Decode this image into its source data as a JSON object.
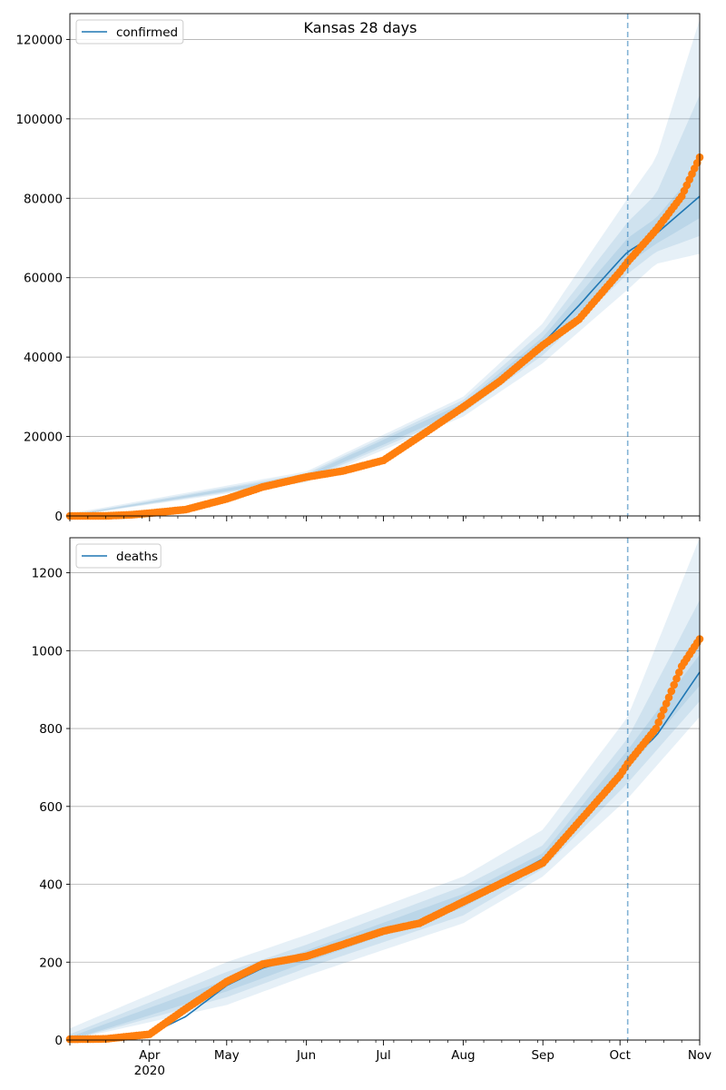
{
  "figure": {
    "title": "Kansas 28 days"
  },
  "colors": {
    "model": "#1f77b4",
    "observed": "#ff7f0e",
    "band": "#1f77b4",
    "grid": "#b0b0b0",
    "forecast_line": "#1f77b4"
  },
  "chart_data": [
    {
      "type": "line",
      "title": "Kansas 28 days",
      "xlabel": "",
      "ylabel": "",
      "x_range": [
        "2020-03-01",
        "2020-11-01"
      ],
      "ylim": [
        0,
        126500
      ],
      "yticks": [
        0,
        20000,
        40000,
        60000,
        80000,
        100000,
        120000
      ],
      "ytick_labels": [
        "0",
        "20000",
        "40000",
        "60000",
        "80000",
        "100000",
        "120000"
      ],
      "grid": "horizontal",
      "legend": {
        "position": "top-left",
        "entries": [
          "confirmed"
        ]
      },
      "forecast_start": "2020-10-04",
      "series": [
        {
          "name": "confirmed",
          "kind": "model_median",
          "points": [
            [
              "2020-03-01",
              0
            ],
            [
              "2020-03-15",
              200
            ],
            [
              "2020-04-01",
              700
            ],
            [
              "2020-04-15",
              2000
            ],
            [
              "2020-05-01",
              4200
            ],
            [
              "2020-05-15",
              7500
            ],
            [
              "2020-06-01",
              9800
            ],
            [
              "2020-06-15",
              11300
            ],
            [
              "2020-07-01",
              14000
            ],
            [
              "2020-07-15",
              20000
            ],
            [
              "2020-08-01",
              27500
            ],
            [
              "2020-08-15",
              34500
            ],
            [
              "2020-09-01",
              43500
            ],
            [
              "2020-09-15",
              53000
            ],
            [
              "2020-10-01",
              64500
            ],
            [
              "2020-10-04",
              66500
            ],
            [
              "2020-10-15",
              71000
            ],
            [
              "2020-11-01",
              80500
            ]
          ]
        },
        {
          "name": "",
          "kind": "observed",
          "points": [
            [
              "2020-03-01",
              0
            ],
            [
              "2020-03-15",
              20
            ],
            [
              "2020-03-25",
              300
            ],
            [
              "2020-04-01",
              700
            ],
            [
              "2020-04-15",
              1600
            ],
            [
              "2020-05-01",
              4300
            ],
            [
              "2020-05-15",
              7300
            ],
            [
              "2020-06-01",
              9800
            ],
            [
              "2020-06-15",
              11300
            ],
            [
              "2020-07-01",
              14000
            ],
            [
              "2020-07-15",
              20000
            ],
            [
              "2020-08-01",
              27400
            ],
            [
              "2020-08-15",
              33800
            ],
            [
              "2020-09-01",
              43000
            ],
            [
              "2020-09-15",
              49500
            ],
            [
              "2020-10-01",
              61500
            ],
            [
              "2020-10-04",
              64000
            ],
            [
              "2020-10-15",
              72000
            ],
            [
              "2020-10-25",
              80500
            ],
            [
              "2020-11-01",
              90300
            ]
          ]
        }
      ],
      "bands": [
        {
          "lower": [
            [
              "2020-03-01",
              0
            ],
            [
              "2020-06-01",
              8500
            ],
            [
              "2020-08-01",
              25000
            ],
            [
              "2020-09-01",
              38500
            ],
            [
              "2020-10-04",
              57000
            ],
            [
              "2020-10-15",
              63500
            ],
            [
              "2020-11-01",
              66000
            ]
          ],
          "upper": [
            [
              "2020-03-01",
              600
            ],
            [
              "2020-06-01",
              11200
            ],
            [
              "2020-08-01",
              30000
            ],
            [
              "2020-09-01",
              48500
            ],
            [
              "2020-10-04",
              80000
            ],
            [
              "2020-10-15",
              90000
            ],
            [
              "2020-11-01",
              125000
            ]
          ]
        },
        {
          "lower": [
            [
              "2020-03-01",
              0
            ],
            [
              "2020-06-01",
              9000
            ],
            [
              "2020-08-01",
              26000
            ],
            [
              "2020-09-01",
              40500
            ],
            [
              "2020-10-04",
              61000
            ],
            [
              "2020-10-15",
              66500
            ],
            [
              "2020-11-01",
              70500
            ]
          ],
          "upper": [
            [
              "2020-03-01",
              300
            ],
            [
              "2020-06-01",
              10700
            ],
            [
              "2020-08-01",
              29200
            ],
            [
              "2020-09-01",
              46500
            ],
            [
              "2020-10-04",
              74000
            ],
            [
              "2020-10-15",
              81000
            ],
            [
              "2020-11-01",
              106000
            ]
          ]
        },
        {
          "lower": [
            [
              "2020-03-01",
              0
            ],
            [
              "2020-06-01",
              9400
            ],
            [
              "2020-08-01",
              26800
            ],
            [
              "2020-09-01",
              42000
            ],
            [
              "2020-10-04",
              63500
            ],
            [
              "2020-10-15",
              68500
            ],
            [
              "2020-11-01",
              75000
            ]
          ],
          "upper": [
            [
              "2020-03-01",
              150
            ],
            [
              "2020-06-01",
              10300
            ],
            [
              "2020-08-01",
              28400
            ],
            [
              "2020-09-01",
              45000
            ],
            [
              "2020-10-04",
              70000
            ],
            [
              "2020-10-15",
              75000
            ],
            [
              "2020-11-01",
              88000
            ]
          ]
        }
      ]
    },
    {
      "type": "line",
      "xlabel": "",
      "ylabel": "",
      "x_range": [
        "2020-03-01",
        "2020-11-01"
      ],
      "ylim": [
        0,
        1290
      ],
      "yticks": [
        0,
        200,
        400,
        600,
        800,
        1000,
        1200
      ],
      "ytick_labels": [
        "0",
        "200",
        "400",
        "600",
        "800",
        "1000",
        "1200"
      ],
      "xticks": [
        "2020-04-01",
        "2020-05-01",
        "2020-06-01",
        "2020-07-01",
        "2020-08-01",
        "2020-09-01",
        "2020-10-01",
        "2020-11-01"
      ],
      "xtick_labels": [
        "Apr",
        "May",
        "Jun",
        "Jul",
        "Aug",
        "Sep",
        "Oct",
        "Nov"
      ],
      "xtick_sublabel": "2020",
      "grid": "horizontal",
      "legend": {
        "position": "top-left",
        "entries": [
          "deaths"
        ]
      },
      "forecast_start": "2020-10-04",
      "series": [
        {
          "name": "deaths",
          "kind": "model_median",
          "points": [
            [
              "2020-03-01",
              2
            ],
            [
              "2020-03-15",
              3
            ],
            [
              "2020-04-01",
              15
            ],
            [
              "2020-04-15",
              60
            ],
            [
              "2020-05-01",
              140
            ],
            [
              "2020-05-15",
              185
            ],
            [
              "2020-06-01",
              215
            ],
            [
              "2020-06-15",
              240
            ],
            [
              "2020-07-01",
              275
            ],
            [
              "2020-07-15",
              305
            ],
            [
              "2020-08-01",
              355
            ],
            [
              "2020-08-15",
              405
            ],
            [
              "2020-09-01",
              465
            ],
            [
              "2020-09-15",
              550
            ],
            [
              "2020-10-01",
              685
            ],
            [
              "2020-10-04",
              715
            ],
            [
              "2020-10-15",
              780
            ],
            [
              "2020-11-01",
              945
            ]
          ]
        },
        {
          "name": "",
          "kind": "observed",
          "points": [
            [
              "2020-03-01",
              2
            ],
            [
              "2020-03-15",
              3
            ],
            [
              "2020-04-01",
              15
            ],
            [
              "2020-04-15",
              80
            ],
            [
              "2020-05-01",
              150
            ],
            [
              "2020-05-15",
              195
            ],
            [
              "2020-06-01",
              215
            ],
            [
              "2020-06-15",
              245
            ],
            [
              "2020-07-01",
              280
            ],
            [
              "2020-07-15",
              300
            ],
            [
              "2020-08-01",
              355
            ],
            [
              "2020-08-15",
              400
            ],
            [
              "2020-09-01",
              455
            ],
            [
              "2020-09-15",
              560
            ],
            [
              "2020-10-01",
              680
            ],
            [
              "2020-10-04",
              710
            ],
            [
              "2020-10-15",
              800
            ],
            [
              "2020-10-25",
              960
            ],
            [
              "2020-11-01",
              1030
            ]
          ]
        }
      ],
      "bands": [
        {
          "lower": [
            [
              "2020-03-01",
              0
            ],
            [
              "2020-05-01",
              90
            ],
            [
              "2020-06-01",
              165
            ],
            [
              "2020-08-01",
              300
            ],
            [
              "2020-09-01",
              420
            ],
            [
              "2020-10-04",
              620
            ],
            [
              "2020-11-01",
              830
            ]
          ],
          "upper": [
            [
              "2020-03-01",
              30
            ],
            [
              "2020-05-01",
              200
            ],
            [
              "2020-06-01",
              270
            ],
            [
              "2020-08-01",
              420
            ],
            [
              "2020-09-01",
              540
            ],
            [
              "2020-10-04",
              830
            ],
            [
              "2020-11-01",
              1290
            ]
          ]
        },
        {
          "lower": [
            [
              "2020-03-01",
              0
            ],
            [
              "2020-05-01",
              110
            ],
            [
              "2020-06-01",
              185
            ],
            [
              "2020-08-01",
              320
            ],
            [
              "2020-09-01",
              440
            ],
            [
              "2020-10-04",
              660
            ],
            [
              "2020-11-01",
              870
            ]
          ],
          "upper": [
            [
              "2020-03-01",
              15
            ],
            [
              "2020-05-01",
              175
            ],
            [
              "2020-06-01",
              245
            ],
            [
              "2020-08-01",
              395
            ],
            [
              "2020-09-01",
              500
            ],
            [
              "2020-10-04",
              775
            ],
            [
              "2020-11-01",
              1130
            ]
          ]
        },
        {
          "lower": [
            [
              "2020-03-01",
              0
            ],
            [
              "2020-05-01",
              125
            ],
            [
              "2020-06-01",
              200
            ],
            [
              "2020-08-01",
              340
            ],
            [
              "2020-09-01",
              455
            ],
            [
              "2020-10-04",
              695
            ],
            [
              "2020-11-01",
              910
            ]
          ],
          "upper": [
            [
              "2020-03-01",
              8
            ],
            [
              "2020-05-01",
              155
            ],
            [
              "2020-06-01",
              230
            ],
            [
              "2020-08-01",
              375
            ],
            [
              "2020-09-01",
              480
            ],
            [
              "2020-10-04",
              745
            ],
            [
              "2020-11-01",
              990
            ]
          ]
        }
      ]
    }
  ]
}
